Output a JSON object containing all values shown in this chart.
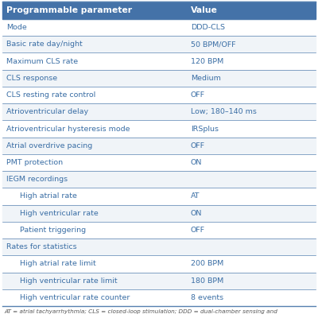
{
  "header": [
    "Programmable parameter",
    "Value"
  ],
  "header_bg": "#4472a8",
  "header_text_color": "#ffffff",
  "rows": [
    {
      "param": "Mode",
      "value": "DDD-CLS",
      "indent": false,
      "section_header": false,
      "bg": "#ffffff"
    },
    {
      "param": "Basic rate day/night",
      "value": "50 BPM/OFF",
      "indent": false,
      "section_header": false,
      "bg": "#f0f4f8"
    },
    {
      "param": "Maximum CLS rate",
      "value": "120 BPM",
      "indent": false,
      "section_header": false,
      "bg": "#ffffff"
    },
    {
      "param": "CLS response",
      "value": "Medium",
      "indent": false,
      "section_header": false,
      "bg": "#f0f4f8"
    },
    {
      "param": "CLS resting rate control",
      "value": "OFF",
      "indent": false,
      "section_header": false,
      "bg": "#ffffff"
    },
    {
      "param": "Atrioventricular delay",
      "value": "Low; 180–140 ms",
      "indent": false,
      "section_header": false,
      "bg": "#f0f4f8"
    },
    {
      "param": "Atrioventricular hysteresis mode",
      "value": "IRSplus",
      "indent": false,
      "section_header": false,
      "bg": "#ffffff"
    },
    {
      "param": "Atrial overdrive pacing",
      "value": "OFF",
      "indent": false,
      "section_header": false,
      "bg": "#f0f4f8"
    },
    {
      "param": "PMT protection",
      "value": "ON",
      "indent": false,
      "section_header": false,
      "bg": "#ffffff"
    },
    {
      "param": "IEGM recordings",
      "value": "",
      "indent": false,
      "section_header": true,
      "bg": "#f0f4f8"
    },
    {
      "param": "High atrial rate",
      "value": "AT",
      "indent": true,
      "section_header": false,
      "bg": "#ffffff"
    },
    {
      "param": "High ventricular rate",
      "value": "ON",
      "indent": true,
      "section_header": false,
      "bg": "#f0f4f8"
    },
    {
      "param": "Patient triggering",
      "value": "OFF",
      "indent": true,
      "section_header": false,
      "bg": "#ffffff"
    },
    {
      "param": "Rates for statistics",
      "value": "",
      "indent": false,
      "section_header": true,
      "bg": "#f0f4f8"
    },
    {
      "param": "High atrial rate limit",
      "value": "200 BPM",
      "indent": true,
      "section_header": false,
      "bg": "#ffffff"
    },
    {
      "param": "High ventricular rate limit",
      "value": "180 BPM",
      "indent": true,
      "section_header": false,
      "bg": "#f0f4f8"
    },
    {
      "param": "High ventricular rate counter",
      "value": "8 events",
      "indent": true,
      "section_header": false,
      "bg": "#ffffff"
    }
  ],
  "footer_text": "AT = atrial tachyarrhythmia; CLS = closed-loop stimulation; DDD = dual-chamber sensing and",
  "divider_color": "#5580b0",
  "text_color": "#3a6ea5",
  "value_color": "#3a6ea5",
  "section_header_color": "#3a6ea5",
  "font_size": 6.8,
  "header_font_size": 7.8,
  "col_split": 0.58
}
